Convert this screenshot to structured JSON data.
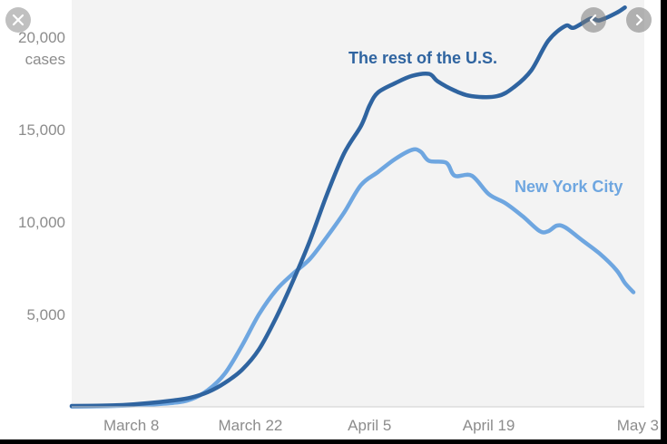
{
  "chart_data": {
    "type": "line",
    "y_axis": {
      "ticks": [
        5000,
        10000,
        15000,
        20000
      ],
      "tick_labels": [
        "5,000",
        "10,000",
        "15,000",
        "20,000"
      ],
      "unit_label": "cases",
      "ylim": [
        0,
        22000
      ]
    },
    "x_axis": {
      "tick_labels": [
        "March 8",
        "March 22",
        "April 5",
        "April 19",
        "May 3"
      ],
      "tick_days": [
        7,
        21,
        35,
        49,
        63
      ],
      "xlim": [
        0,
        63
      ]
    },
    "grid": false,
    "series": [
      {
        "name": "The rest of the U.S.",
        "color": "#2f64a0",
        "points": [
          [
            0,
            50
          ],
          [
            3,
            60
          ],
          [
            6,
            100
          ],
          [
            9,
            200
          ],
          [
            12,
            350
          ],
          [
            14,
            500
          ],
          [
            16,
            800
          ],
          [
            18,
            1300
          ],
          [
            20,
            2000
          ],
          [
            22,
            3100
          ],
          [
            24,
            4800
          ],
          [
            26,
            6800
          ],
          [
            28,
            9000
          ],
          [
            30,
            11500
          ],
          [
            32,
            13700
          ],
          [
            34,
            15200
          ],
          [
            35,
            16300
          ],
          [
            36,
            17000
          ],
          [
            38,
            17500
          ],
          [
            40,
            17900
          ],
          [
            42,
            18000
          ],
          [
            43,
            17600
          ],
          [
            45,
            17100
          ],
          [
            47,
            16800
          ],
          [
            50,
            16800
          ],
          [
            52,
            17300
          ],
          [
            54,
            18200
          ],
          [
            56,
            19800
          ],
          [
            58,
            20600
          ],
          [
            59,
            20500
          ],
          [
            61,
            21000
          ],
          [
            62,
            20900
          ],
          [
            64,
            21300
          ],
          [
            65,
            21600
          ]
        ]
      },
      {
        "name": "New York City",
        "color": "#6ea6e0",
        "points": [
          [
            0,
            20
          ],
          [
            3,
            30
          ],
          [
            6,
            60
          ],
          [
            9,
            120
          ],
          [
            12,
            220
          ],
          [
            14,
            400
          ],
          [
            16,
            900
          ],
          [
            18,
            1800
          ],
          [
            20,
            3300
          ],
          [
            22,
            5000
          ],
          [
            24,
            6300
          ],
          [
            26,
            7200
          ],
          [
            28,
            8000
          ],
          [
            30,
            9200
          ],
          [
            32,
            10500
          ],
          [
            34,
            12000
          ],
          [
            36,
            12700
          ],
          [
            38,
            13400
          ],
          [
            40,
            13900
          ],
          [
            41,
            13800
          ],
          [
            42,
            13300
          ],
          [
            44,
            13200
          ],
          [
            45,
            12500
          ],
          [
            47,
            12500
          ],
          [
            49,
            11500
          ],
          [
            51,
            11000
          ],
          [
            53,
            10300
          ],
          [
            55,
            9500
          ],
          [
            56,
            9500
          ],
          [
            57,
            9800
          ],
          [
            58,
            9700
          ],
          [
            60,
            9000
          ],
          [
            62,
            8300
          ],
          [
            64,
            7400
          ],
          [
            65,
            6700
          ],
          [
            66,
            6200
          ]
        ]
      }
    ],
    "annotations": [
      {
        "text": "The rest of the U.S.",
        "series": "The rest of the U.S."
      },
      {
        "text": "New York City",
        "series": "New York City"
      }
    ]
  },
  "controls": {
    "close_icon": "close-icon",
    "prev_icon": "chevron-left-icon",
    "next_icon": "chevron-right-icon"
  }
}
